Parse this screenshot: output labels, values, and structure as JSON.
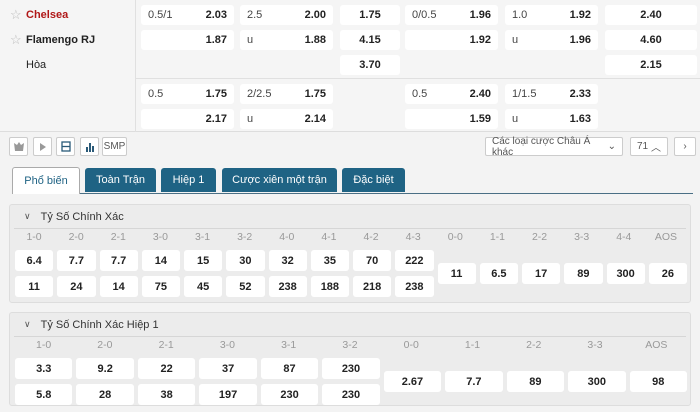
{
  "match": {
    "home": "Chelsea",
    "away": "Flamengo RJ",
    "draw": "Hòa",
    "home_color": "#b01818"
  },
  "odds_rows": [
    [
      {
        "l": "0.5/1",
        "r": "2.03"
      },
      {
        "l": "2.5",
        "r": "2.00"
      },
      {
        "r": "1.75"
      },
      {
        "l": "0/0.5",
        "r": "1.96"
      },
      {
        "l": "1.0",
        "r": "1.92"
      },
      {
        "r": "2.40"
      }
    ],
    [
      {
        "l": "",
        "r": "1.87"
      },
      {
        "l": "u",
        "r": "1.88"
      },
      {
        "r": "4.15"
      },
      {
        "l": "",
        "r": "1.92"
      },
      {
        "l": "u",
        "r": "1.96"
      },
      {
        "r": "4.60"
      }
    ],
    [
      null,
      null,
      {
        "r": "3.70"
      },
      null,
      null,
      {
        "r": "2.15"
      }
    ],
    [
      {
        "l": "0.5",
        "r": "1.75"
      },
      {
        "l": "2/2.5",
        "r": "1.75"
      },
      null,
      {
        "l": "0.5",
        "r": "2.40"
      },
      {
        "l": "1/1.5",
        "r": "2.33"
      },
      null
    ],
    [
      {
        "l": "",
        "r": "2.17"
      },
      {
        "l": "u",
        "r": "2.14"
      },
      null,
      {
        "l": "",
        "r": "1.59"
      },
      {
        "l": "u",
        "r": "1.63"
      },
      null
    ]
  ],
  "toolbar": {
    "smp": "SMP",
    "market_select": "Các loại cược Châu Á khác",
    "count": "71",
    "icons": [
      "shield-icon",
      "play-icon",
      "list-icon",
      "chart-icon"
    ]
  },
  "tabs": [
    {
      "label": "Phổ biến",
      "active": true
    },
    {
      "label": "Toàn Trận"
    },
    {
      "label": "Hiệp 1"
    },
    {
      "label": "Cược xiên một trận"
    },
    {
      "label": "Đặc biệt"
    }
  ],
  "correct_score": {
    "title": "Tỷ Số Chính Xác",
    "headers": [
      "1-0",
      "2-0",
      "2-1",
      "3-0",
      "3-1",
      "3-2",
      "4-0",
      "4-1",
      "4-2",
      "4-3",
      "0-0",
      "1-1",
      "2-2",
      "3-3",
      "4-4",
      "AOS"
    ],
    "home": [
      "6.4",
      "7.7",
      "7.7",
      "14",
      "15",
      "30",
      "32",
      "35",
      "70",
      "222"
    ],
    "away": [
      "11",
      "24",
      "14",
      "75",
      "45",
      "52",
      "238",
      "188",
      "218",
      "238"
    ],
    "draws": [
      "11",
      "6.5",
      "17",
      "89",
      "300",
      "26"
    ]
  },
  "correct_score_h1": {
    "title": "Tỷ Số Chính Xác Hiệp 1",
    "headers": [
      "1-0",
      "2-0",
      "2-1",
      "3-0",
      "3-1",
      "3-2",
      "0-0",
      "1-1",
      "2-2",
      "3-3",
      "AOS"
    ],
    "home": [
      "3.3",
      "9.2",
      "22",
      "37",
      "87",
      "230"
    ],
    "away": [
      "5.8",
      "28",
      "38",
      "197",
      "230",
      "230"
    ],
    "draws": [
      "2.67",
      "7.7",
      "89",
      "300",
      "98"
    ]
  }
}
